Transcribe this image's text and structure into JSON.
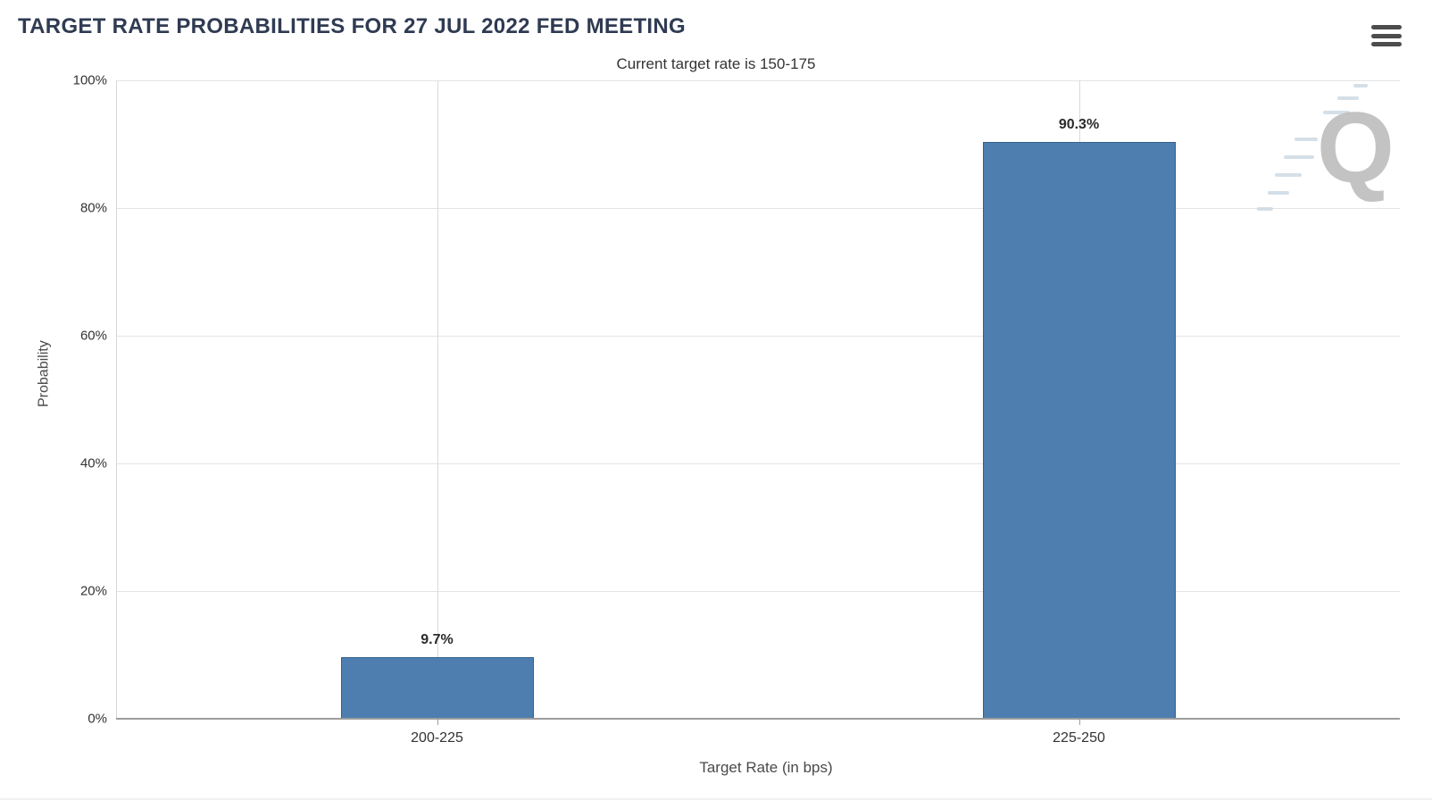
{
  "chart_data": {
    "type": "bar",
    "title": "TARGET RATE PROBABILITIES FOR 27 JUL 2022 FED MEETING",
    "subtitle": "Current target rate is 150-175",
    "categories": [
      "200-225",
      "225-250"
    ],
    "values": [
      9.7,
      90.3
    ],
    "data_labels": [
      "9.7%",
      "90.3%"
    ],
    "xlabel": "Target Rate (in bps)",
    "ylabel": "Probability",
    "ylim": [
      0,
      100
    ],
    "yticks": [
      0,
      20,
      40,
      60,
      80,
      100
    ],
    "ytick_labels": [
      "0%",
      "20%",
      "40%",
      "60%",
      "80%",
      "100%"
    ],
    "grid": true,
    "legend": "none",
    "bar_color": "#4d7eaf",
    "bar_border_color": "#35618e",
    "title_color": "#2f3b52"
  },
  "menu": {
    "icon": "hamburger-menu-icon"
  },
  "watermark": {
    "letter": "Q"
  }
}
